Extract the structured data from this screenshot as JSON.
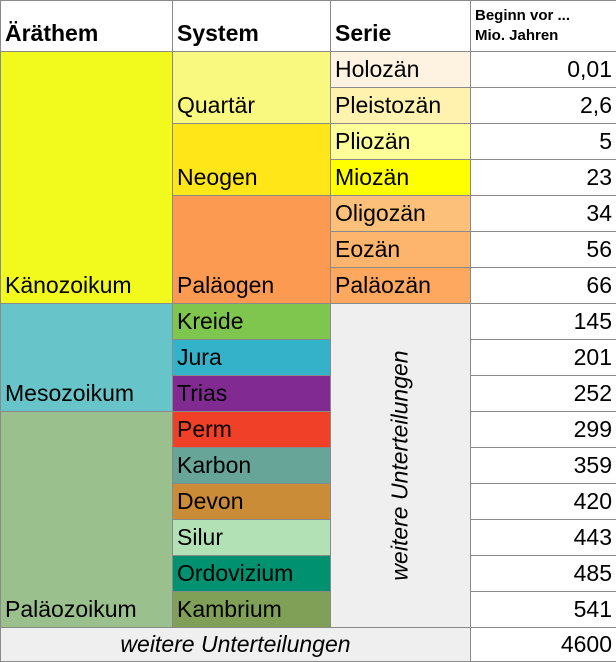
{
  "header": [
    "Äräthem",
    "System",
    "Serie",
    [
      "Beginn vor ...",
      "Mio. Jahren"
    ]
  ],
  "eras": [
    "Känozoikum",
    "Mesozoikum",
    "Paläozoikum"
  ],
  "systems": [
    "Quartär",
    "Neogen",
    "Paläogen",
    "Kreide",
    "Jura",
    "Trias",
    "Perm",
    "Karbon",
    "Devon",
    "Silur",
    "Ordovizium",
    "Kambrium"
  ],
  "series": [
    "Holozän",
    "Pleistozän",
    "Pliozän",
    "Miozän",
    "Oligozän",
    "Eozän",
    "Paläozän"
  ],
  "series_note": "weitere Unterteilungen",
  "begin": [
    "0,01",
    "2,6",
    "5",
    "23",
    "34",
    "56",
    "66",
    "145",
    "201",
    "252",
    "299",
    "359",
    "420",
    "443",
    "485",
    "541"
  ],
  "footer": {
    "label": "weitere Unterteilungen",
    "begin": "4600"
  }
}
